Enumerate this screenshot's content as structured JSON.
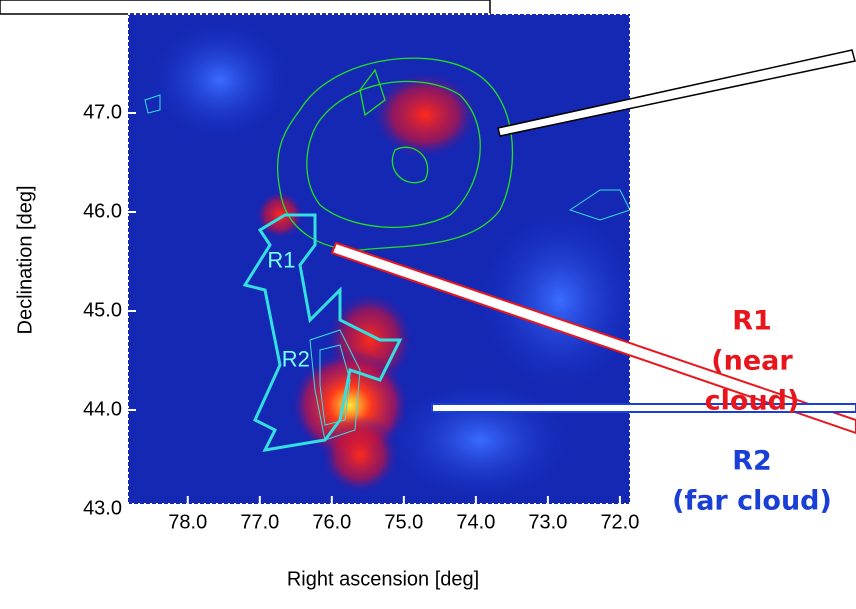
{
  "chart_data": {
    "type": "map",
    "xlabel": "Right ascension [deg]",
    "ylabel": "Declination [deg]",
    "xlim": [
      78.83,
      71.86
    ],
    "ylim": [
      43.0,
      48.0
    ],
    "xticks": [
      {
        "value": 78,
        "label": "78.0"
      },
      {
        "value": 77,
        "label": "77.0"
      },
      {
        "value": 76,
        "label": "76.0"
      },
      {
        "value": 75,
        "label": "75.0"
      },
      {
        "value": 74,
        "label": "74.0"
      },
      {
        "value": 73,
        "label": "73.0"
      },
      {
        "value": 72,
        "label": "72.0"
      }
    ],
    "yticks": [
      {
        "value": 43,
        "label": "43.0"
      },
      {
        "value": 44,
        "label": "44.0"
      },
      {
        "value": 45,
        "label": "45.0"
      },
      {
        "value": 46,
        "label": "46.0"
      },
      {
        "value": 47,
        "label": "47.0"
      }
    ],
    "regions": [
      {
        "label": "R1",
        "x": 76.7,
        "y": 45.5
      },
      {
        "label": "R2",
        "x": 76.5,
        "y": 44.5
      }
    ],
    "callouts": [
      {
        "title": "R1",
        "lines": [
          "(near",
          "cloud)"
        ],
        "color": "#e8161c"
      },
      {
        "title": "R2",
        "lines": [
          "(far cloud)"
        ],
        "color": "#1a3fd6"
      }
    ]
  }
}
